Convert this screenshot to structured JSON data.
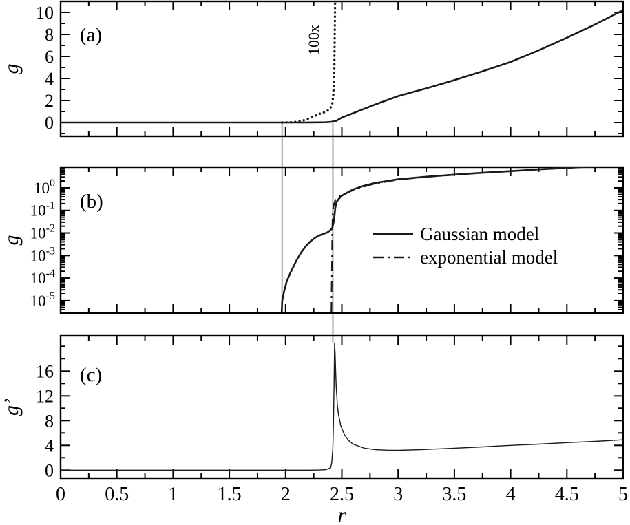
{
  "figure": {
    "background": "#ffffff",
    "axis_color": "#000000",
    "curve_color": "#1a1a1a",
    "guide_color": "#bdbdbd",
    "xlabel": "r",
    "xlim": [
      0,
      5
    ],
    "xticks": [
      0,
      0.5,
      1,
      1.5,
      2,
      2.5,
      3,
      3.5,
      4,
      4.5,
      5
    ],
    "xtick_labels": [
      "0",
      "0.5",
      "1",
      "1.5",
      "2",
      "2.5",
      "3",
      "3.5",
      "4",
      "4.5",
      "5"
    ],
    "x_minor_step": 0.25,
    "guides": [
      {
        "x": 1.97,
        "span": "a-b"
      },
      {
        "x": 2.42,
        "span": "a-c"
      }
    ]
  },
  "chart_data": [
    {
      "id": "a",
      "type": "line",
      "panel_label": "(a)",
      "ylabel": "g",
      "yscale": "linear",
      "ylim": [
        -1.25,
        11
      ],
      "yticks": [
        0,
        2,
        4,
        6,
        8,
        10
      ],
      "y_minor_step": 1,
      "annotation": {
        "text": "100x",
        "x": 2.295,
        "y": 7.5,
        "rotate": -90
      },
      "series": [
        {
          "name": "g Gaussian model",
          "style": "solid",
          "width": 2.6,
          "points": [
            [
              0,
              0
            ],
            [
              1.5,
              0
            ],
            [
              1.9,
              0
            ],
            [
              2.0,
              0.001
            ],
            [
              2.1,
              0.003
            ],
            [
              2.2,
              0.006
            ],
            [
              2.3,
              0.01
            ],
            [
              2.35,
              0.02
            ],
            [
              2.4,
              0.05
            ],
            [
              2.45,
              0.15
            ],
            [
              2.5,
              0.45
            ],
            [
              2.6,
              0.85
            ],
            [
              2.7,
              1.25
            ],
            [
              2.8,
              1.65
            ],
            [
              3.0,
              2.4
            ],
            [
              3.25,
              3.1
            ],
            [
              3.5,
              3.85
            ],
            [
              3.75,
              4.65
            ],
            [
              4.0,
              5.5
            ],
            [
              4.25,
              6.55
            ],
            [
              4.5,
              7.7
            ],
            [
              4.75,
              8.9
            ],
            [
              5.0,
              10.2
            ]
          ]
        },
        {
          "name": "g magnified 100x",
          "style": "dotted",
          "width": 3.4,
          "points": [
            [
              1.97,
              0.001
            ],
            [
              2.0,
              0.007
            ],
            [
              2.04,
              0.016
            ],
            [
              2.07,
              0.032
            ],
            [
              2.1,
              0.065
            ],
            [
              2.14,
              0.14
            ],
            [
              2.18,
              0.26
            ],
            [
              2.22,
              0.42
            ],
            [
              2.26,
              0.6
            ],
            [
              2.3,
              0.78
            ],
            [
              2.34,
              0.92
            ],
            [
              2.37,
              1.05
            ],
            [
              2.4,
              1.35
            ],
            [
              2.415,
              1.7
            ],
            [
              2.425,
              2.6
            ],
            [
              2.433,
              5.0
            ],
            [
              2.44,
              11.0
            ],
            [
              2.447,
              14.0
            ]
          ]
        }
      ]
    },
    {
      "id": "b",
      "type": "line",
      "panel_label": "(b)",
      "ylabel": "g",
      "yscale": "log",
      "ylim": [
        2.8e-06,
        8.2
      ],
      "ytick_base": "10",
      "ytick_exponents": [
        0,
        -1,
        -2,
        -3,
        -4,
        -5
      ],
      "legend": [
        {
          "label": "Gaussian model",
          "style": "solid",
          "width": 3.2
        },
        {
          "label": "exponential model",
          "style": "dashdot",
          "width": 2.4
        }
      ],
      "series": [
        {
          "name": "Gaussian model",
          "style": "solid",
          "width": 2.6,
          "points": [
            [
              1.965,
              3e-06
            ],
            [
              1.97,
              1e-05
            ],
            [
              1.99,
              3e-05
            ],
            [
              2.01,
              7e-05
            ],
            [
              2.04,
              0.00016
            ],
            [
              2.07,
              0.00032
            ],
            [
              2.1,
              0.00065
            ],
            [
              2.14,
              0.0014
            ],
            [
              2.18,
              0.0026
            ],
            [
              2.22,
              0.0042
            ],
            [
              2.26,
              0.006
            ],
            [
              2.3,
              0.0078
            ],
            [
              2.34,
              0.0092
            ],
            [
              2.37,
              0.0105
            ],
            [
              2.4,
              0.0135
            ],
            [
              2.415,
              0.017
            ],
            [
              2.425,
              0.026
            ],
            [
              2.433,
              0.05
            ],
            [
              2.44,
              0.11
            ],
            [
              2.45,
              0.22
            ],
            [
              2.47,
              0.31
            ],
            [
              2.5,
              0.45
            ],
            [
              2.6,
              0.85
            ],
            [
              2.7,
              1.25
            ],
            [
              2.8,
              1.65
            ],
            [
              3.0,
              2.4
            ],
            [
              3.25,
              3.1
            ],
            [
              3.5,
              3.85
            ],
            [
              3.75,
              4.65
            ],
            [
              4.0,
              5.5
            ],
            [
              4.25,
              6.55
            ],
            [
              4.5,
              7.7
            ],
            [
              4.75,
              8.9
            ],
            [
              5.0,
              10.2
            ]
          ]
        },
        {
          "name": "exponential model",
          "style": "dashdot",
          "width": 2.2,
          "points": [
            [
              2.407,
              3e-06
            ],
            [
              2.409,
              2e-05
            ],
            [
              2.411,
              0.0002
            ],
            [
              2.413,
              0.0015
            ],
            [
              2.415,
              0.008
            ],
            [
              2.417,
              0.03
            ],
            [
              2.42,
              0.08
            ],
            [
              2.425,
              0.14
            ],
            [
              2.43,
              0.19
            ],
            [
              2.44,
              0.27
            ],
            [
              2.46,
              0.36
            ],
            [
              2.5,
              0.48
            ],
            [
              2.55,
              0.62
            ],
            [
              2.6,
              0.78
            ],
            [
              2.7,
              1.15
            ],
            [
              2.8,
              1.55
            ],
            [
              3.0,
              2.3
            ],
            [
              3.25,
              3.05
            ],
            [
              3.5,
              3.8
            ],
            [
              3.75,
              4.6
            ],
            [
              4.0,
              5.45
            ],
            [
              4.25,
              6.5
            ],
            [
              4.5,
              7.65
            ],
            [
              4.75,
              8.85
            ],
            [
              5.0,
              10.15
            ]
          ]
        }
      ]
    },
    {
      "id": "c",
      "type": "line",
      "panel_label": "(c)",
      "ylabel": "g’",
      "yscale": "linear",
      "ylim": [
        -1.3,
        21.7
      ],
      "yticks": [
        0,
        4,
        8,
        12,
        16
      ],
      "y_minor_step": 2,
      "series": [
        {
          "name": "g-prime",
          "style": "solid",
          "width": 1.4,
          "points": [
            [
              0,
              0
            ],
            [
              1.5,
              0
            ],
            [
              2.2,
              0
            ],
            [
              2.3,
              0.02
            ],
            [
              2.36,
              0.08
            ],
            [
              2.4,
              0.4
            ],
            [
              2.41,
              1.2
            ],
            [
              2.42,
              3.5
            ],
            [
              2.425,
              7
            ],
            [
              2.43,
              13
            ],
            [
              2.435,
              20.5
            ],
            [
              2.44,
              19
            ],
            [
              2.445,
              16
            ],
            [
              2.45,
              13.5
            ],
            [
              2.46,
              10.5
            ],
            [
              2.47,
              9.0
            ],
            [
              2.49,
              7.2
            ],
            [
              2.52,
              5.8
            ],
            [
              2.56,
              4.8
            ],
            [
              2.6,
              4.2
            ],
            [
              2.7,
              3.55
            ],
            [
              2.8,
              3.3
            ],
            [
              2.9,
              3.22
            ],
            [
              3.0,
              3.2
            ],
            [
              3.2,
              3.3
            ],
            [
              3.5,
              3.55
            ],
            [
              3.75,
              3.75
            ],
            [
              4.0,
              4.0
            ],
            [
              4.25,
              4.2
            ],
            [
              4.5,
              4.45
            ],
            [
              4.75,
              4.65
            ],
            [
              5.0,
              4.9
            ]
          ]
        }
      ]
    }
  ]
}
